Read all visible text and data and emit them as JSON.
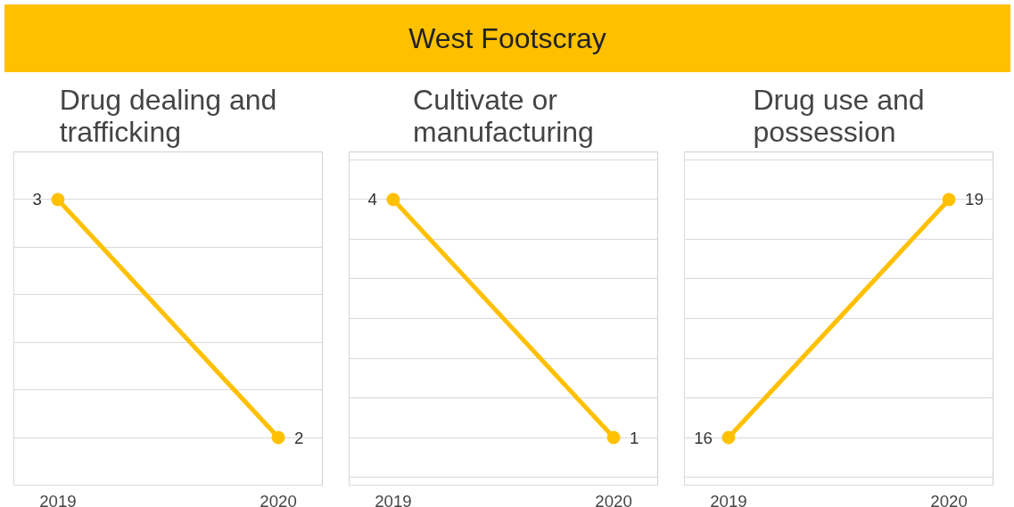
{
  "chart_data": [
    {
      "type": "other",
      "title": "West Footscray"
    },
    {
      "type": "line",
      "title": "Drug dealing and trafficking",
      "categories": [
        "2019",
        "2020"
      ],
      "series": [
        {
          "color": "#ffc000",
          "values": [
            3,
            2
          ]
        }
      ],
      "tick_labels": "x",
      "grid": "y",
      "data_labels": true,
      "marker": "circle"
    },
    {
      "type": "line",
      "title": "Cultivate or manufacturing",
      "categories": [
        "2019",
        "2020"
      ],
      "series": [
        {
          "color": "#ffc000",
          "values": [
            4,
            1
          ]
        }
      ],
      "tick_labels": "x",
      "grid": "y",
      "data_labels": true,
      "marker": "circle"
    },
    {
      "type": "line",
      "title": "Drug use and possession",
      "categories": [
        "2019",
        "2020"
      ],
      "series": [
        {
          "color": "#ffc000",
          "values": [
            16,
            19
          ]
        }
      ],
      "tick_labels": "x",
      "grid": "y",
      "data_labels": true,
      "marker": "circle"
    }
  ]
}
